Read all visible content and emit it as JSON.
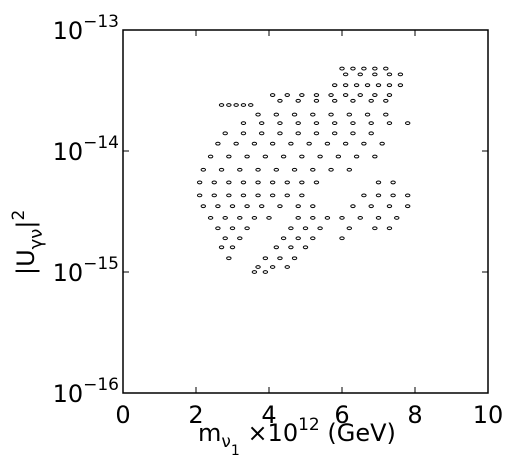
{
  "chart_data": {
    "type": "scatter",
    "x_label": [
      "m",
      "ν",
      "1",
      " ×10",
      "12",
      " (GeV)"
    ],
    "y_label": [
      "|U",
      "γν",
      "|",
      "2"
    ],
    "yscale": "log",
    "xlim": [
      0,
      10
    ],
    "xticks": [
      0,
      2,
      4,
      6,
      8,
      10
    ],
    "ylim": [
      1e-16,
      1e-13
    ],
    "yticks": [
      {
        "value": 1e-16,
        "label": "10−16"
      },
      {
        "value": 1e-15,
        "label": "10−15"
      },
      {
        "value": 1e-14,
        "label": "10−14"
      },
      {
        "value": 1e-13,
        "label": "10−13"
      }
    ],
    "color": "#000000",
    "x": [
      6.0,
      6.3,
      6.6,
      6.9,
      7.2,
      6.1,
      6.5,
      6.9,
      7.3,
      7.6,
      5.8,
      6.1,
      6.4,
      6.7,
      7.0,
      7.3,
      7.6,
      4.1,
      4.5,
      4.9,
      5.3,
      5.7,
      6.1,
      6.5,
      6.9,
      7.3,
      4.3,
      4.8,
      5.3,
      5.8,
      6.3,
      6.8,
      7.2,
      2.7,
      2.9,
      3.1,
      3.3,
      3.5,
      3.7,
      4.2,
      4.7,
      5.2,
      5.7,
      6.2,
      6.7,
      7.2,
      3.3,
      3.8,
      4.3,
      4.8,
      5.3,
      5.8,
      6.3,
      6.8,
      7.3,
      7.8,
      2.8,
      3.3,
      3.8,
      4.3,
      4.8,
      5.3,
      5.8,
      6.3,
      6.8,
      2.6,
      3.1,
      3.6,
      4.1,
      4.6,
      5.1,
      5.6,
      6.1,
      6.6,
      7.1,
      2.4,
      2.9,
      3.4,
      3.9,
      4.4,
      4.9,
      5.4,
      5.9,
      6.4,
      6.9,
      2.2,
      2.7,
      3.2,
      3.7,
      4.2,
      4.7,
      5.2,
      5.7,
      6.2,
      2.1,
      2.5,
      2.9,
      3.3,
      3.7,
      4.1,
      4.5,
      4.9,
      5.3,
      7.0,
      7.4,
      2.1,
      2.5,
      2.9,
      3.3,
      3.7,
      4.1,
      4.5,
      4.9,
      6.6,
      7.0,
      7.4,
      7.8,
      2.2,
      2.6,
      3.0,
      3.4,
      3.8,
      4.3,
      4.8,
      5.2,
      6.3,
      6.8,
      7.3,
      7.8,
      2.4,
      2.8,
      3.2,
      3.6,
      4.0,
      4.8,
      5.2,
      5.6,
      6.0,
      6.5,
      7.0,
      7.5,
      2.6,
      3.0,
      3.4,
      4.6,
      5.0,
      5.4,
      6.2,
      6.9,
      7.3,
      2.8,
      3.2,
      4.4,
      4.8,
      5.2,
      6.0,
      2.7,
      3.0,
      4.2,
      4.6,
      5.0,
      2.9,
      3.9,
      4.3,
      4.7,
      3.7,
      4.1,
      4.5,
      3.6,
      3.9
    ],
    "values": [
      4.8e-14,
      4.8e-14,
      4.8e-14,
      4.8e-14,
      4.8e-14,
      4.3e-14,
      4.3e-14,
      4.3e-14,
      4.3e-14,
      4.3e-14,
      3.5e-14,
      3.5e-14,
      3.5e-14,
      3.5e-14,
      3.5e-14,
      3.5e-14,
      3.5e-14,
      2.9e-14,
      2.9e-14,
      2.9e-14,
      2.9e-14,
      2.9e-14,
      2.9e-14,
      2.9e-14,
      2.9e-14,
      2.9e-14,
      2.6e-14,
      2.6e-14,
      2.6e-14,
      2.6e-14,
      2.6e-14,
      2.6e-14,
      2.6e-14,
      2.4e-14,
      2.4e-14,
      2.4e-14,
      2.4e-14,
      2.4e-14,
      2e-14,
      2e-14,
      2e-14,
      2e-14,
      2e-14,
      2e-14,
      2e-14,
      2e-14,
      1.7e-14,
      1.7e-14,
      1.7e-14,
      1.7e-14,
      1.7e-14,
      1.7e-14,
      1.7e-14,
      1.7e-14,
      1.7e-14,
      1.7e-14,
      1.4e-14,
      1.4e-14,
      1.4e-14,
      1.4e-14,
      1.4e-14,
      1.4e-14,
      1.4e-14,
      1.4e-14,
      1.4e-14,
      1.15e-14,
      1.15e-14,
      1.15e-14,
      1.15e-14,
      1.15e-14,
      1.15e-14,
      1.15e-14,
      1.15e-14,
      1.15e-14,
      1.15e-14,
      9e-15,
      9e-15,
      9e-15,
      9e-15,
      9e-15,
      9e-15,
      9e-15,
      9e-15,
      9e-15,
      9e-15,
      7e-15,
      7e-15,
      7e-15,
      7e-15,
      7e-15,
      7e-15,
      7e-15,
      7e-15,
      7e-15,
      5.5e-15,
      5.5e-15,
      5.5e-15,
      5.5e-15,
      5.5e-15,
      5.5e-15,
      5.5e-15,
      5.5e-15,
      5.5e-15,
      5.5e-15,
      5.5e-15,
      4.3e-15,
      4.3e-15,
      4.3e-15,
      4.3e-15,
      4.3e-15,
      4.3e-15,
      4.3e-15,
      4.3e-15,
      4.3e-15,
      4.3e-15,
      4.3e-15,
      4.3e-15,
      3.5e-15,
      3.5e-15,
      3.5e-15,
      3.5e-15,
      3.5e-15,
      3.5e-15,
      3.5e-15,
      3.5e-15,
      3.5e-15,
      3.5e-15,
      3.5e-15,
      3.5e-15,
      2.8e-15,
      2.8e-15,
      2.8e-15,
      2.8e-15,
      2.8e-15,
      2.8e-15,
      2.8e-15,
      2.8e-15,
      2.8e-15,
      2.8e-15,
      2.8e-15,
      2.8e-15,
      2.3e-15,
      2.3e-15,
      2.3e-15,
      2.3e-15,
      2.3e-15,
      2.3e-15,
      2.3e-15,
      2.3e-15,
      2.3e-15,
      1.9e-15,
      1.9e-15,
      1.9e-15,
      1.9e-15,
      1.9e-15,
      1.9e-15,
      1.6e-15,
      1.6e-15,
      1.6e-15,
      1.6e-15,
      1.6e-15,
      1.3e-15,
      1.3e-15,
      1.3e-15,
      1.3e-15,
      1.1e-15,
      1.1e-15,
      1.1e-15,
      1e-15,
      1e-15
    ]
  }
}
